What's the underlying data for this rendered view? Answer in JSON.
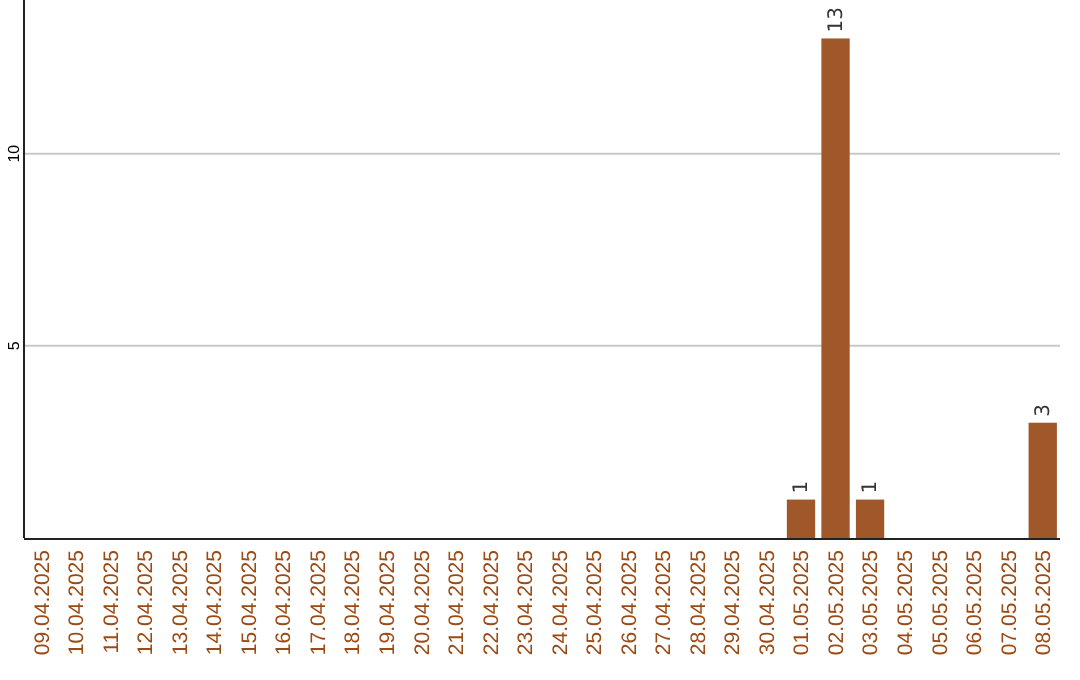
{
  "chart_data": {
    "type": "bar",
    "categories": [
      "09.04.2025",
      "10.04.2025",
      "11.04.2025",
      "12.04.2025",
      "13.04.2025",
      "14.04.2025",
      "15.04.2025",
      "16.04.2025",
      "17.04.2025",
      "18.04.2025",
      "19.04.2025",
      "20.04.2025",
      "21.04.2025",
      "22.04.2025",
      "23.04.2025",
      "24.04.2025",
      "25.04.2025",
      "26.04.2025",
      "27.04.2025",
      "28.04.2025",
      "29.04.2025",
      "30.04.2025",
      "01.05.2025",
      "02.05.2025",
      "03.05.2025",
      "04.05.2025",
      "05.05.2025",
      "06.05.2025",
      "07.05.2025",
      "08.05.2025"
    ],
    "values": [
      0,
      0,
      0,
      0,
      0,
      0,
      0,
      0,
      0,
      0,
      0,
      0,
      0,
      0,
      0,
      0,
      0,
      0,
      0,
      0,
      0,
      0,
      1,
      13,
      1,
      0,
      0,
      0,
      0,
      3
    ],
    "value_labels": [
      null,
      null,
      null,
      null,
      null,
      null,
      null,
      null,
      null,
      null,
      null,
      null,
      null,
      null,
      null,
      null,
      null,
      null,
      null,
      null,
      null,
      null,
      "1",
      "13",
      "1",
      null,
      null,
      null,
      null,
      "3"
    ],
    "color": "#a0582a",
    "ylim": [
      0,
      14
    ],
    "yticks": [
      5,
      10
    ],
    "grid": "y"
  }
}
